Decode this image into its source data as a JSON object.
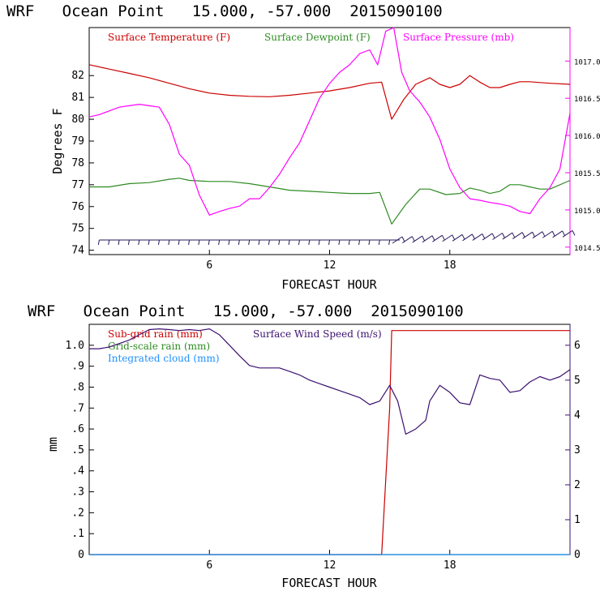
{
  "colors": {
    "temperature": "#cc0000",
    "dewpoint": "#2e8b22",
    "pressure": "#ff00ff",
    "wind_barbs": "#2a1a5e",
    "subgrid_rain": "#cc0000",
    "gridscale_rain": "#2e8b22",
    "integrated_cloud": "#1e90ff",
    "wind_speed": "#3b1070"
  },
  "chart_data": [
    {
      "type": "line",
      "title": "WRF   Ocean Point   15.000, -57.000  2015090100",
      "xlabel": "FORECAST HOUR",
      "ylabel": "Degrees F",
      "xlim": [
        0,
        24
      ],
      "ylim": [
        73.8,
        84.2
      ],
      "y2lim": [
        1014.4,
        1017.45
      ],
      "x_ticks": [
        6,
        12,
        18
      ],
      "y_ticks": [
        "74",
        "75",
        "76",
        "77",
        "78",
        "79",
        "80",
        "81",
        "82"
      ],
      "y2_ticks": [
        "1014.5",
        "1015.0",
        "1015.5",
        "1016.0",
        "1016.5",
        "1017.0"
      ],
      "grid": false,
      "legend": "top",
      "series": [
        {
          "name": "Surface Temperature (F)",
          "axis": "left",
          "x": [
            0,
            1,
            2,
            3,
            4,
            5,
            6,
            7,
            8,
            9,
            10,
            11,
            12,
            13,
            14,
            14.6,
            15.1,
            15.7,
            16.3,
            17,
            17.5,
            18,
            18.5,
            19,
            19.5,
            20,
            20.5,
            21,
            21.5,
            22,
            22.5,
            23,
            24
          ],
          "y": [
            82.5,
            82.3,
            82.1,
            81.9,
            81.65,
            81.4,
            81.2,
            81.1,
            81.05,
            81.03,
            81.1,
            81.2,
            81.3,
            81.45,
            81.65,
            81.7,
            80.0,
            80.9,
            81.6,
            81.9,
            81.6,
            81.45,
            81.6,
            82.0,
            81.7,
            81.45,
            81.45,
            81.6,
            81.72,
            81.72,
            81.68,
            81.65,
            81.6
          ]
        },
        {
          "name": "Surface Dewpoint (F)",
          "axis": "left",
          "x": [
            0,
            1,
            2,
            3,
            4,
            4.5,
            5,
            6,
            7,
            8,
            9,
            10,
            11,
            12,
            13,
            14,
            14.5,
            15.1,
            15.8,
            16.5,
            17,
            17.8,
            18.5,
            19,
            19.5,
            20,
            20.5,
            21,
            21.5,
            22,
            22.5,
            23,
            24
          ],
          "y": [
            76.9,
            76.9,
            77.05,
            77.1,
            77.25,
            77.3,
            77.2,
            77.15,
            77.15,
            77.05,
            76.9,
            76.75,
            76.7,
            76.65,
            76.6,
            76.6,
            76.65,
            75.2,
            76.1,
            76.8,
            76.8,
            76.55,
            76.6,
            76.85,
            76.75,
            76.6,
            76.7,
            77.0,
            77.0,
            76.9,
            76.8,
            76.8,
            77.2
          ]
        },
        {
          "name": "Surface Pressure (mb)",
          "axis": "right",
          "x": [
            0,
            0.5,
            1,
            1.5,
            2,
            2.5,
            3,
            3.5,
            4,
            4.5,
            5,
            5.5,
            6,
            6.5,
            7,
            7.5,
            8,
            8.5,
            9,
            9.5,
            10,
            10.5,
            11,
            11.5,
            12,
            12.5,
            13,
            13.5,
            14,
            14.4,
            14.8,
            15.2,
            15.6,
            16,
            16.5,
            17,
            17.5,
            18,
            18.5,
            19,
            19.5,
            20,
            20.5,
            21,
            21.5,
            22,
            22.5,
            23,
            23.5,
            24
          ],
          "y": [
            1016.25,
            1016.28,
            1016.33,
            1016.38,
            1016.4,
            1016.42,
            1016.4,
            1016.38,
            1016.15,
            1015.75,
            1015.6,
            1015.2,
            1014.93,
            1014.98,
            1015.02,
            1015.05,
            1015.15,
            1015.15,
            1015.3,
            1015.48,
            1015.7,
            1015.9,
            1016.2,
            1016.5,
            1016.7,
            1016.85,
            1016.95,
            1017.1,
            1017.15,
            1016.95,
            1017.4,
            1017.45,
            1016.85,
            1016.6,
            1016.45,
            1016.25,
            1015.95,
            1015.55,
            1015.3,
            1015.15,
            1015.13,
            1015.1,
            1015.08,
            1015.05,
            1014.98,
            1014.95,
            1015.15,
            1015.3,
            1015.55,
            1016.3
          ]
        }
      ]
    },
    {
      "type": "line",
      "title": "WRF   Ocean Point   15.000, -57.000  2015090100",
      "xlabel": "FORECAST HOUR",
      "ylabel": "mm",
      "xlim": [
        0,
        24
      ],
      "ylim": [
        0,
        1.1
      ],
      "y2lim": [
        0,
        6.6
      ],
      "x_ticks": [
        6,
        12,
        18
      ],
      "y_ticks": [
        "0",
        ".1",
        ".2",
        ".3",
        ".4",
        ".5",
        ".6",
        ".7",
        ".8",
        ".9",
        "1.0"
      ],
      "y2_ticks": [
        "0",
        "1",
        "2",
        "3",
        "4",
        "5",
        "6"
      ],
      "grid": false,
      "legend": "top-left",
      "series": [
        {
          "name": "Sub-grid rain (mm)",
          "axis": "left",
          "x": [
            0,
            14.6,
            15.0,
            15.1,
            24
          ],
          "y": [
            0,
            0,
            0.7,
            1.07,
            1.07
          ]
        },
        {
          "name": "Grid-scale rain (mm)",
          "axis": "left",
          "x": [
            0,
            24
          ],
          "y": [
            0,
            0
          ]
        },
        {
          "name": "Integrated cloud (mm)",
          "axis": "left",
          "x": [
            0,
            24
          ],
          "y": [
            0,
            0
          ]
        },
        {
          "name": "Surface Wind Speed (m/s)",
          "axis": "right",
          "x": [
            0,
            0.5,
            1,
            1.5,
            2,
            2.5,
            3,
            3.5,
            4,
            4.5,
            5,
            5.5,
            6,
            6.5,
            7,
            7.5,
            8,
            8.5,
            9,
            9.5,
            10,
            10.5,
            11,
            11.5,
            12,
            12.5,
            13,
            13.5,
            14,
            14.5,
            15,
            15.4,
            15.8,
            16.3,
            16.8,
            17,
            17.5,
            18,
            18.5,
            19,
            19.5,
            20,
            20.5,
            21,
            21.5,
            22,
            22.5,
            23,
            23.5,
            24
          ],
          "y": [
            5.9,
            5.9,
            5.95,
            6.05,
            6.15,
            6.3,
            6.45,
            6.47,
            6.45,
            6.42,
            6.45,
            6.42,
            6.47,
            6.3,
            6.0,
            5.7,
            5.42,
            5.35,
            5.35,
            5.35,
            5.25,
            5.15,
            5.0,
            4.9,
            4.8,
            4.7,
            4.6,
            4.5,
            4.3,
            4.4,
            4.85,
            4.4,
            3.45,
            3.6,
            3.85,
            4.4,
            4.85,
            4.65,
            4.35,
            4.3,
            5.15,
            5.05,
            5.0,
            4.65,
            4.7,
            4.95,
            5.1,
            5.0,
            5.1,
            5.3
          ]
        }
      ]
    }
  ]
}
